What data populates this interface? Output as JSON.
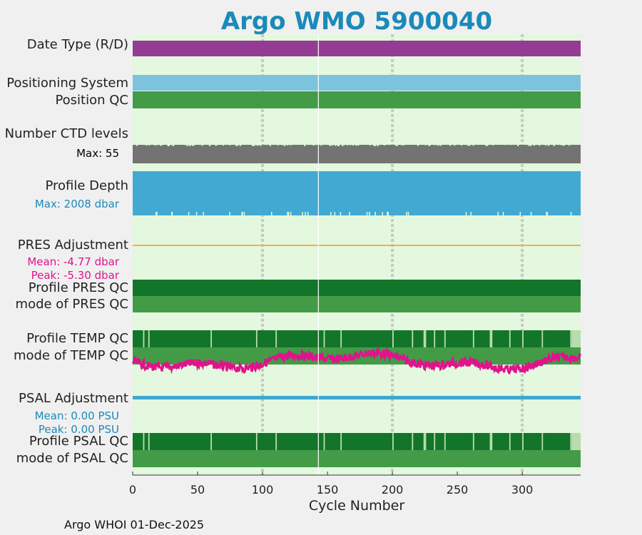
{
  "title": "Argo WMO 5900040",
  "rows": {
    "date_type": {
      "label": "Date Type (R/D)",
      "color": "#943c94"
    },
    "positioning": {
      "label": "Positioning System",
      "color": "#7ec3de"
    },
    "position_qc": {
      "label": "Position QC",
      "color": "#449b47"
    },
    "ctd_levels": {
      "label": "Number CTD levels",
      "max_text": "Max: 55",
      "color": "#737373"
    },
    "profile_depth": {
      "label": "Profile Depth",
      "max_text": "Max: 2008 dbar",
      "color": "#42a9d2"
    },
    "pres_adjustment": {
      "label": "PRES Adjustment",
      "mean_text": "Mean: -4.77 dbar",
      "peak_text": "Peak: -5.30 dbar",
      "color": "#f2b33d"
    },
    "profile_pres_qc": {
      "label": "Profile PRES QC",
      "color": "#137529"
    },
    "mode_pres_qc": {
      "label": "mode of PRES QC",
      "color": "#449b47"
    },
    "profile_temp_qc": {
      "label": "Profile TEMP QC",
      "color": "#137529"
    },
    "mode_temp_qc": {
      "label": "mode of TEMP QC",
      "color": "#449b47"
    },
    "psal_adjustment": {
      "label": "PSAL Adjustment",
      "mean_text": "Mean: 0.00 PSU",
      "peak_text": "Peak: 0.00 PSU",
      "color": "#3fa6d0"
    },
    "profile_psal_qc": {
      "label": "Profile PSAL QC",
      "color": "#137529"
    },
    "mode_psal_qc": {
      "label": "mode of PSAL QC",
      "color": "#449b47"
    }
  },
  "chart_data": {
    "type": "timeline",
    "title": "Argo WMO 5900040",
    "xlabel": "Cycle Number",
    "xlim": [
      0,
      345
    ],
    "xticks": [
      0,
      50,
      100,
      150,
      200,
      250,
      300
    ],
    "gap_cycle": 143,
    "temp_trace_color": "#e0138c",
    "background_color": "#e3f8de",
    "grid_color": "#c8c8c8"
  },
  "footer": "Argo WHOI 01-Dec-2025"
}
